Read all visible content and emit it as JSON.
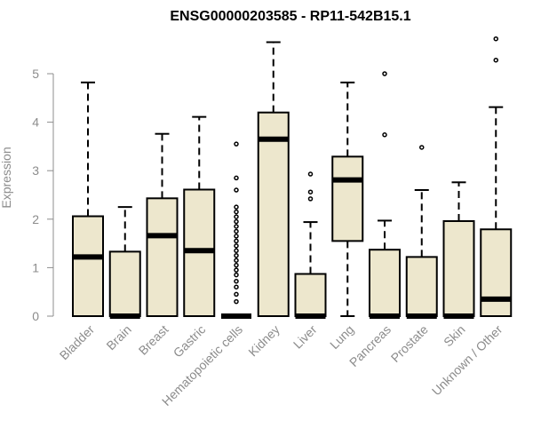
{
  "chart_data": {
    "type": "box",
    "title": "ENSG00000203585 - RP11-542B15.1",
    "xlabel": "",
    "ylabel": "Expression",
    "ylim": [
      0,
      5.9
    ],
    "yticks": [
      0,
      1,
      2,
      3,
      4,
      5
    ],
    "grid": false,
    "colors": {
      "box_fill": "#ede7cd",
      "box_stroke": "#000000",
      "axis": "#8c8c8c"
    },
    "categories": [
      "Bladder",
      "Brain",
      "Breast",
      "Gastric",
      "Hematopoietic cells",
      "Kidney",
      "Liver",
      "Lung",
      "Pancreas",
      "Prostate",
      "Skin",
      "Unknown / Other"
    ],
    "boxes": [
      {
        "q1": 0.0,
        "median": 1.22,
        "q3": 2.06,
        "whisker_low": 0.0,
        "whisker_high": 4.82,
        "outliers": []
      },
      {
        "q1": 0.0,
        "median": 0.0,
        "q3": 1.33,
        "whisker_low": 0.0,
        "whisker_high": 2.25,
        "outliers": []
      },
      {
        "q1": 0.0,
        "median": 1.66,
        "q3": 2.43,
        "whisker_low": 0.0,
        "whisker_high": 3.76,
        "outliers": []
      },
      {
        "q1": 0.0,
        "median": 1.35,
        "q3": 2.61,
        "whisker_low": 0.0,
        "whisker_high": 4.11,
        "outliers": []
      },
      {
        "q1": 0.0,
        "median": 0.0,
        "q3": 0.0,
        "whisker_low": 0.0,
        "whisker_high": 0.0,
        "outliers": [
          0.3,
          0.45,
          0.6,
          0.72,
          0.85,
          0.95,
          1.05,
          1.15,
          1.25,
          1.35,
          1.45,
          1.55,
          1.65,
          1.75,
          1.85,
          1.95,
          2.05,
          2.15,
          2.25,
          2.6,
          2.85,
          3.55
        ]
      },
      {
        "q1": 0.0,
        "median": 3.65,
        "q3": 4.2,
        "whisker_low": 0.0,
        "whisker_high": 5.65,
        "outliers": []
      },
      {
        "q1": 0.0,
        "median": 0.0,
        "q3": 0.87,
        "whisker_low": 0.0,
        "whisker_high": 1.94,
        "outliers": [
          2.42,
          2.56,
          2.93
        ]
      },
      {
        "q1": 1.55,
        "median": 2.81,
        "q3": 3.29,
        "whisker_low": 0.0,
        "whisker_high": 4.82,
        "outliers": []
      },
      {
        "q1": 0.0,
        "median": 0.0,
        "q3": 1.37,
        "whisker_low": 0.0,
        "whisker_high": 1.97,
        "outliers": [
          3.74,
          5.0
        ]
      },
      {
        "q1": 0.0,
        "median": 0.0,
        "q3": 1.22,
        "whisker_low": 0.0,
        "whisker_high": 2.6,
        "outliers": [
          3.48
        ]
      },
      {
        "q1": 0.0,
        "median": 0.0,
        "q3": 1.96,
        "whisker_low": 0.0,
        "whisker_high": 2.76,
        "outliers": []
      },
      {
        "q1": 0.0,
        "median": 0.35,
        "q3": 1.79,
        "whisker_low": 0.0,
        "whisker_high": 4.31,
        "outliers": [
          5.28,
          5.72
        ]
      }
    ]
  }
}
